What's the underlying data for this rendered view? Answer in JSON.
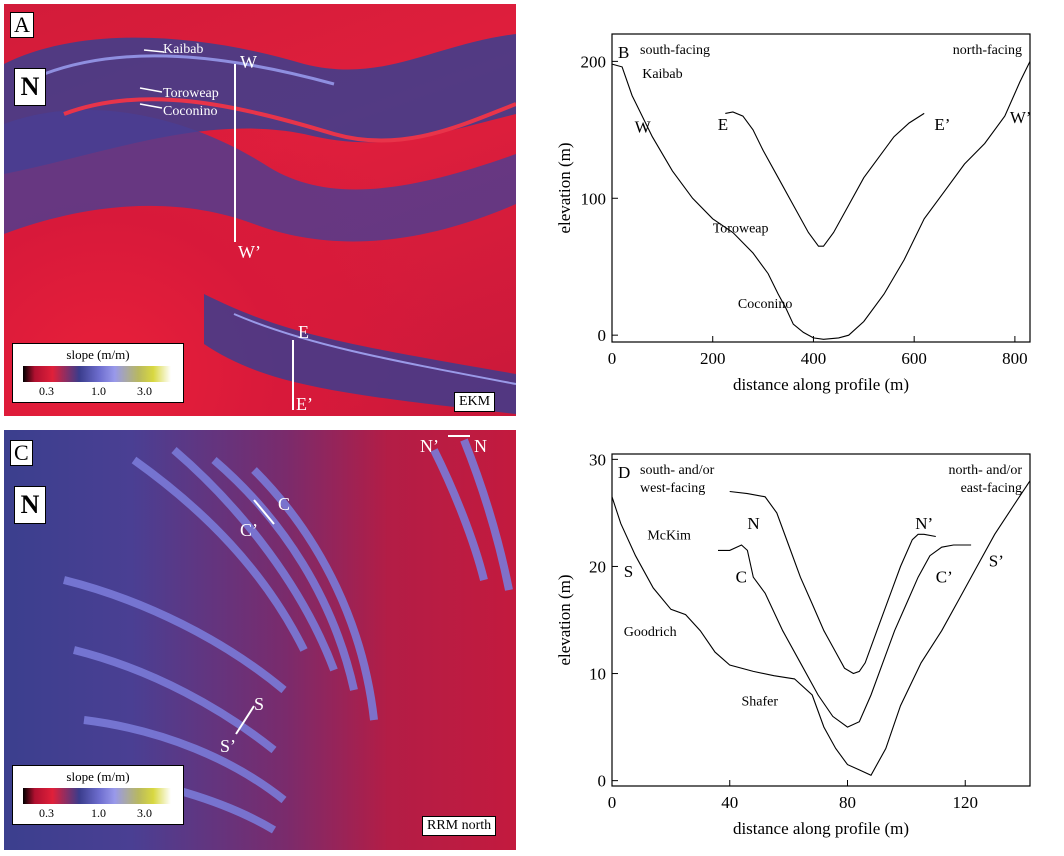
{
  "panels": {
    "A": {
      "letter": "A",
      "site": "EKM",
      "strat_labels": [
        "Kaibab",
        "Toroweap",
        "Coconino"
      ],
      "profile_labels": {
        "W": "W",
        "Wp": "W’",
        "E": "E",
        "Ep": "E’"
      },
      "legend": {
        "title": "slope (m/m)",
        "ticks": [
          "0.3",
          "1.0",
          "3.0"
        ]
      },
      "north": "N"
    },
    "C": {
      "letter": "C",
      "site": "RRM north",
      "profile_labels": {
        "C": "C",
        "Cp": "C’",
        "S": "S",
        "Sp": "S’",
        "N": "N",
        "Np": "N’"
      },
      "legend": {
        "title": "slope (m/m)",
        "ticks": [
          "0.3",
          "1.0",
          "3.0"
        ]
      },
      "north": "N"
    }
  },
  "chart_data": [
    {
      "panel": "B",
      "type": "line",
      "xlabel": "distance along profile (m)",
      "ylabel": "elevation (m)",
      "xlim": [
        0,
        830
      ],
      "ylim": [
        -5,
        220
      ],
      "xticks": [
        0,
        200,
        400,
        600,
        800
      ],
      "yticks": [
        0,
        100,
        200
      ],
      "corner_left": "south-facing",
      "corner_right": "north-facing",
      "series": [
        {
          "id": "W-Wp",
          "x": [
            0,
            20,
            40,
            80,
            120,
            160,
            200,
            240,
            280,
            310,
            330,
            345,
            360,
            380,
            400,
            420,
            450,
            470,
            500,
            540,
            580,
            620,
            660,
            700,
            740,
            780,
            810,
            830
          ],
          "y": [
            198,
            196,
            175,
            145,
            120,
            100,
            85,
            75,
            60,
            45,
            30,
            20,
            8,
            2,
            -2,
            -3,
            -2,
            0,
            10,
            30,
            55,
            85,
            105,
            125,
            140,
            160,
            185,
            200
          ]
        },
        {
          "id": "E-Ep",
          "x": [
            225,
            240,
            260,
            280,
            300,
            330,
            360,
            390,
            410,
            420,
            440,
            470,
            500,
            530,
            560,
            590,
            620
          ],
          "y": [
            162,
            163,
            160,
            150,
            135,
            115,
            95,
            75,
            65,
            65,
            75,
            95,
            115,
            130,
            145,
            155,
            162
          ]
        }
      ],
      "annotations": [
        {
          "text": "Kaibab",
          "x": 60,
          "y": 188
        },
        {
          "text": "W",
          "x": 45,
          "y": 148
        },
        {
          "text": "E",
          "x": 210,
          "y": 150
        },
        {
          "text": "E’",
          "x": 640,
          "y": 150
        },
        {
          "text": "W’",
          "x": 790,
          "y": 155
        },
        {
          "text": "Toroweap",
          "x": 200,
          "y": 75
        },
        {
          "text": "Coconino",
          "x": 250,
          "y": 20
        }
      ]
    },
    {
      "panel": "D",
      "type": "line",
      "xlabel": "distance along profile (m)",
      "ylabel": "elevation (m)",
      "xlim": [
        0,
        142
      ],
      "ylim": [
        -0.5,
        30.5
      ],
      "xticks": [
        0,
        40,
        80,
        120
      ],
      "yticks": [
        0,
        10,
        20,
        30
      ],
      "corner_left": "south- and/or west-facing",
      "corner_right": "north- and/or east-facing",
      "series": [
        {
          "id": "S-Sp",
          "x": [
            0,
            3,
            8,
            14,
            20,
            25,
            30,
            35,
            40,
            48,
            55,
            62,
            68,
            72,
            76,
            80,
            84,
            88,
            93,
            98,
            105,
            112,
            118,
            124,
            130,
            136,
            142
          ],
          "y": [
            26.5,
            24,
            21,
            18,
            16,
            15.5,
            14,
            12,
            10.8,
            10.2,
            9.8,
            9.5,
            8,
            5,
            3,
            1.5,
            1,
            0.5,
            3,
            7,
            11,
            14,
            17,
            20,
            23,
            25.5,
            28
          ]
        },
        {
          "id": "C-Cp",
          "x": [
            36,
            40,
            44,
            46,
            48,
            52,
            58,
            64,
            70,
            75,
            80,
            84,
            88,
            92,
            96,
            100,
            104,
            108,
            112,
            116,
            122
          ],
          "y": [
            21.5,
            21.5,
            22,
            21.5,
            19,
            17.5,
            14,
            11,
            8,
            6,
            5,
            5.5,
            8,
            11,
            14,
            16.5,
            19,
            21,
            21.8,
            22,
            22
          ]
        },
        {
          "id": "N-Np",
          "x": [
            40,
            46,
            52,
            56,
            60,
            64,
            68,
            72,
            76,
            79,
            82,
            84,
            86,
            90,
            94,
            98,
            102,
            104,
            106,
            110
          ],
          "y": [
            27,
            26.8,
            26.5,
            25,
            22,
            19,
            16.5,
            14,
            12,
            10.5,
            10,
            10.2,
            11,
            14,
            17,
            20,
            22.5,
            23,
            23,
            22.8
          ]
        }
      ],
      "annotations": [
        {
          "text": "McKim",
          "x": 12,
          "y": 22.5
        },
        {
          "text": "S",
          "x": 4,
          "y": 19
        },
        {
          "text": "N",
          "x": 46,
          "y": 23.5
        },
        {
          "text": "C",
          "x": 42,
          "y": 18.5
        },
        {
          "text": "N’",
          "x": 103,
          "y": 23.5
        },
        {
          "text": "C’",
          "x": 110,
          "y": 18.5
        },
        {
          "text": "S’",
          "x": 128,
          "y": 20
        },
        {
          "text": "Goodrich",
          "x": 4,
          "y": 13.5
        },
        {
          "text": "Shafer",
          "x": 44,
          "y": 7
        }
      ]
    }
  ]
}
